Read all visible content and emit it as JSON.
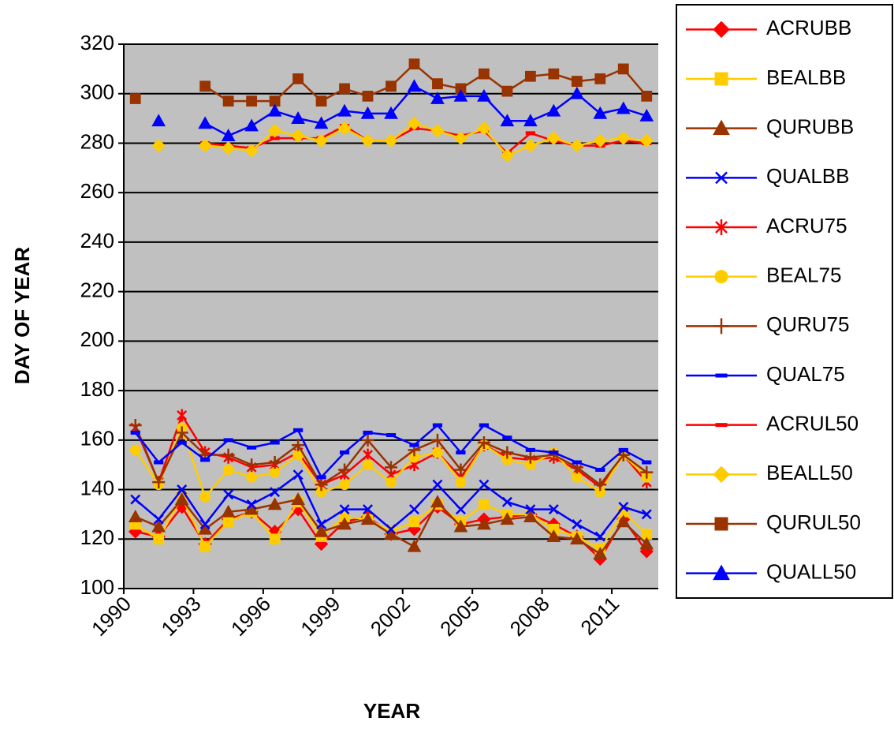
{
  "chart_data": {
    "type": "line",
    "x_label": "YEAR",
    "y_label": "DAY OF YEAR",
    "categories": [
      "1990",
      null,
      null,
      "1993",
      null,
      null,
      "1996",
      null,
      null,
      "1999",
      null,
      null,
      "2002",
      null,
      null,
      "2005",
      null,
      null,
      "2008",
      null,
      null,
      "2011",
      null
    ],
    "ylim": [
      100,
      320
    ],
    "yticks": [
      100,
      120,
      140,
      160,
      180,
      200,
      220,
      240,
      260,
      280,
      300,
      320
    ],
    "grid": true,
    "legend": "right",
    "series": [
      {
        "name": "ACRUBB",
        "color": "#ff0000",
        "marker": "diamond",
        "values": [
          123,
          121,
          133,
          118,
          128,
          131,
          123,
          132,
          118,
          127,
          129,
          122,
          124,
          133,
          126,
          128,
          129,
          130,
          126,
          121,
          112,
          128,
          115
        ]
      },
      {
        "name": "BEALBB",
        "color": "#ffcc00",
        "marker": "square",
        "values": [
          126,
          120,
          137,
          117,
          127,
          131,
          120,
          135,
          121,
          129,
          128,
          123,
          127,
          134,
          127,
          134,
          130,
          130,
          124,
          121,
          116,
          131,
          122
        ]
      },
      {
        "name": "QURUBB",
        "color": "#993300",
        "marker": "triangle",
        "values": [
          129,
          125,
          136,
          124,
          131,
          132,
          134,
          136,
          123,
          126,
          128,
          122,
          117,
          135,
          125,
          126,
          128,
          129,
          121,
          120,
          114,
          127,
          118
        ]
      },
      {
        "name": "QUALBB",
        "color": "#0000ff",
        "marker": "x",
        "values": [
          136,
          128,
          140,
          126,
          138,
          134,
          139,
          146,
          126,
          132,
          132,
          124,
          132,
          142,
          132,
          142,
          135,
          132,
          132,
          126,
          121,
          133,
          130
        ]
      },
      {
        "name": "ACRU75",
        "color": "#ff0000",
        "marker": "star",
        "values": [
          165,
          143,
          170,
          155,
          153,
          149,
          150,
          155,
          142,
          146,
          154,
          146,
          150,
          155,
          145,
          158,
          153,
          152,
          153,
          148,
          141,
          154,
          143
        ]
      },
      {
        "name": "BEAL75",
        "color": "#ffcc00",
        "marker": "circle",
        "values": [
          156,
          142,
          165,
          137,
          148,
          145,
          147,
          154,
          139,
          142,
          150,
          143,
          153,
          155,
          143,
          158,
          152,
          150,
          155,
          145,
          139,
          154,
          145
        ]
      },
      {
        "name": "QURU75",
        "color": "#993300",
        "marker": "plus",
        "values": [
          166,
          143,
          163,
          154,
          154,
          150,
          151,
          158,
          142,
          148,
          160,
          149,
          156,
          160,
          148,
          159,
          155,
          153,
          154,
          149,
          142,
          154,
          147
        ]
      },
      {
        "name": "QUAL75",
        "color": "#0000ff",
        "marker": "dash",
        "values": [
          163,
          151,
          159,
          152,
          160,
          157,
          159,
          164,
          145,
          155,
          163,
          162,
          158,
          166,
          155,
          166,
          161,
          156,
          155,
          151,
          148,
          156,
          151
        ]
      },
      {
        "name": "ACRUL50",
        "color": "#ff0000",
        "marker": "dash",
        "values": [
          null,
          279,
          null,
          280,
          279,
          278,
          282,
          282,
          282,
          287,
          281,
          281,
          286,
          285,
          283,
          285,
          276,
          284,
          281,
          279,
          279,
          281,
          280
        ]
      },
      {
        "name": "BEALL50",
        "color": "#ffcc00",
        "marker": "diamond",
        "values": [
          null,
          279,
          null,
          279,
          278,
          277,
          285,
          283,
          281,
          286,
          281,
          281,
          288,
          285,
          282,
          286,
          275,
          279,
          282,
          279,
          281,
          282,
          281
        ]
      },
      {
        "name": "QURUL50",
        "color": "#993300",
        "marker": "square",
        "values": [
          298,
          null,
          null,
          303,
          297,
          297,
          297,
          306,
          297,
          302,
          299,
          303,
          312,
          304,
          302,
          308,
          301,
          307,
          308,
          305,
          306,
          310,
          299
        ]
      },
      {
        "name": "QUALL50",
        "color": "#0000ff",
        "marker": "triangle",
        "values": [
          null,
          289,
          null,
          288,
          283,
          287,
          293,
          290,
          288,
          293,
          292,
          292,
          303,
          298,
          299,
          299,
          289,
          289,
          293,
          300,
          292,
          294,
          291
        ]
      }
    ]
  }
}
